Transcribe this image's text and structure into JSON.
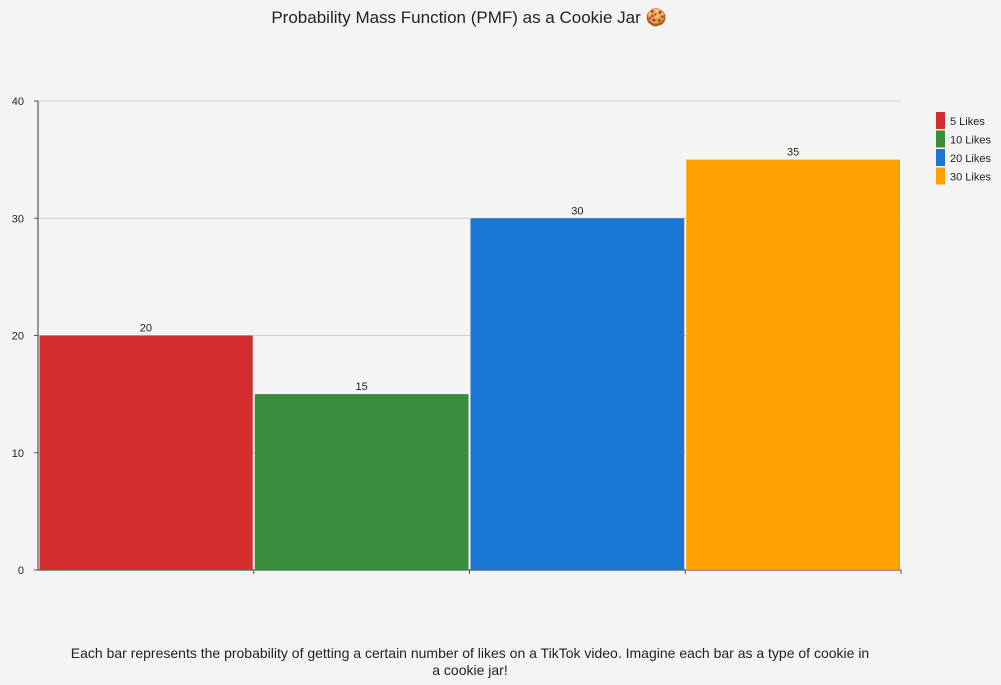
{
  "chart_data": {
    "type": "bar",
    "title": "Probability Mass Function (PMF) as a Cookie Jar 🍪",
    "categories": [
      "5 Likes",
      "10 Likes",
      "20 Likes",
      "30 Likes"
    ],
    "values": [
      20,
      15,
      30,
      35
    ],
    "colors": [
      "#d32f2f",
      "#388e3c",
      "#1976d2",
      "#ffa000"
    ],
    "xlabel": "",
    "ylabel": "",
    "ylim": [
      0,
      40
    ],
    "yticks": [
      0,
      10,
      20,
      30,
      40
    ],
    "grid": true,
    "legend_position": "right-top"
  },
  "caption": "Each bar represents the probability of getting a certain number of likes on a TikTok video. Imagine each bar as a type of cookie in a cookie jar!"
}
